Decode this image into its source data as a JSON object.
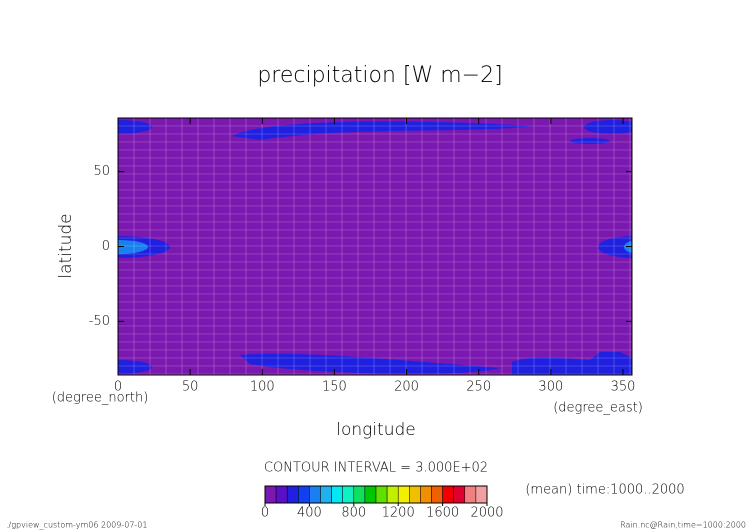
{
  "chart_data": {
    "type": "contour",
    "title": "precipitation [W m−2]",
    "x_label": "longitude",
    "x_unit": "(degree_east)",
    "y_label": "latitude",
    "y_unit": "(degree_north)",
    "xlim": [
      0,
      356.25
    ],
    "xticks": [
      0,
      50,
      100,
      150,
      200,
      250,
      300,
      350
    ],
    "ylim": [
      -85.8,
      85.8
    ],
    "yticks": [
      -50,
      0,
      50
    ],
    "grid": true,
    "background_color": "#7b18b0",
    "contour_note": "CONTOUR INTERVAL = 3.000E+02",
    "colorbar": {
      "range": [
        0,
        2000
      ],
      "ticks": [
        0,
        400,
        800,
        1200,
        1600,
        2000
      ],
      "colors": [
        "#7b18b0",
        "#5a10c8",
        "#2020e0",
        "#1040f0",
        "#1a80f0",
        "#20b0f0",
        "#00e8f0",
        "#10f0c0",
        "#10e060",
        "#00c800",
        "#60e000",
        "#c0f000",
        "#f0f000",
        "#f0c000",
        "#f09000",
        "#f06000",
        "#f00000",
        "#e00030",
        "#f08080",
        "#f0a0a0"
      ]
    },
    "mean_note": "(mean) time:1000..2000",
    "footer_left": "./gpview_custom-ym06  2009-07-01",
    "footer_right": "Rain.nc@Rain,time=1000:2000"
  }
}
